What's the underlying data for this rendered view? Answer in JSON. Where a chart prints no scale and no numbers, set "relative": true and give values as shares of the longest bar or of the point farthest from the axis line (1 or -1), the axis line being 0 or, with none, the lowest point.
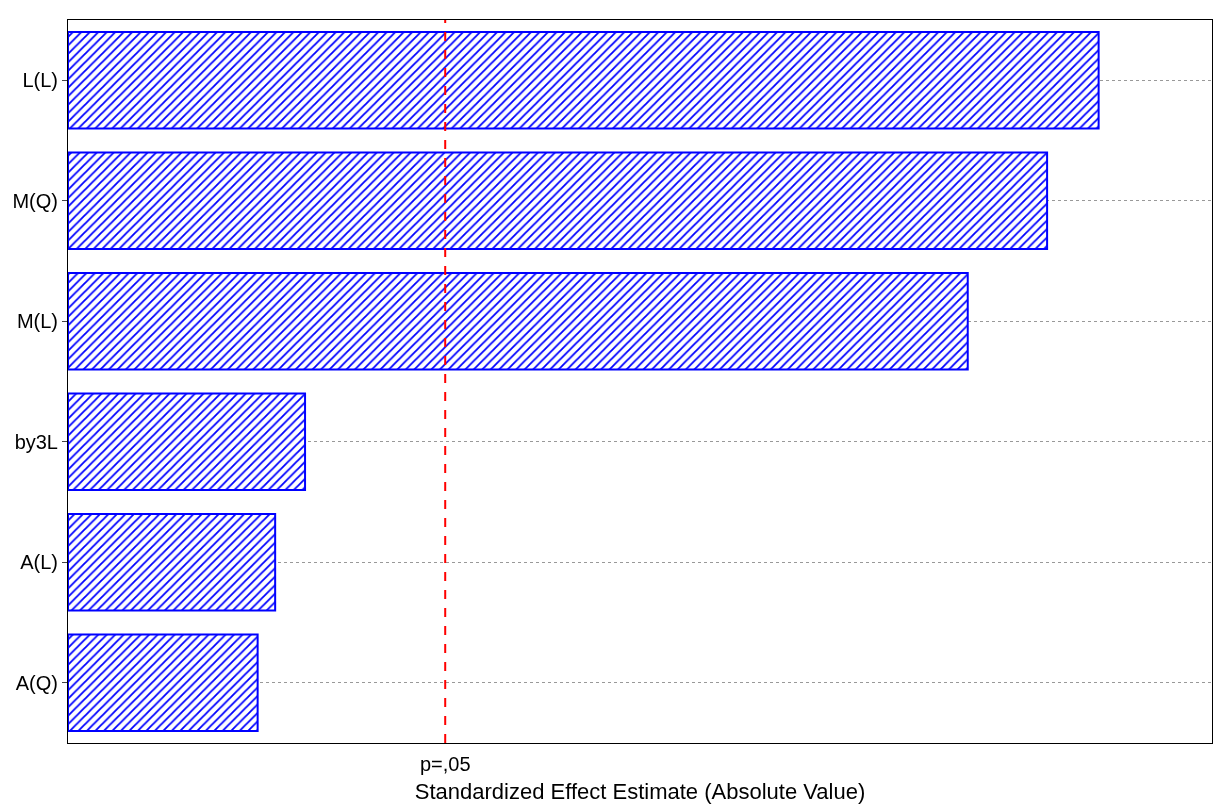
{
  "chart_data": {
    "type": "bar",
    "orientation": "horizontal",
    "relative": true,
    "xlabel": "Standardized Effect Estimate (Absolute Value)",
    "categories": [
      "L(L)",
      "M(Q)",
      "M(L)",
      "by3L",
      "A(L)",
      "A(Q)"
    ],
    "values": [
      1,
      0.95,
      0.873,
      0.23,
      0.201,
      0.184
    ],
    "color": "#0000ff",
    "ref_lines": [
      {
        "axis": "x",
        "value": 0.366,
        "label": "p=,05",
        "color": "#ff0000",
        "line_style": "dashed"
      }
    ],
    "grid": "y"
  }
}
